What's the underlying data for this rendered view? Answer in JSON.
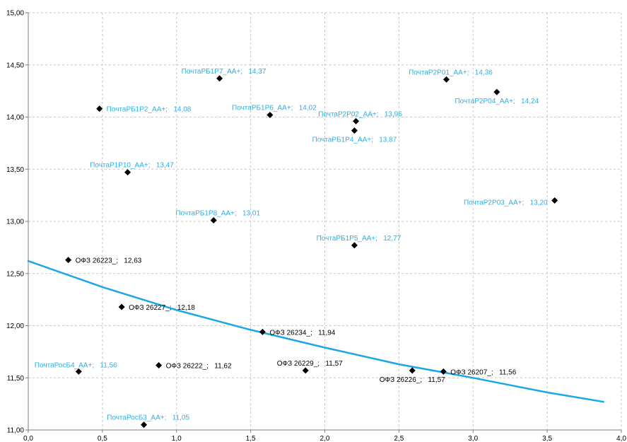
{
  "chart_data": {
    "type": "scatter",
    "xlim": [
      0,
      4
    ],
    "ylim": [
      11,
      15
    ],
    "xticks": [
      "0,0",
      "0,5",
      "1,0",
      "1,5",
      "2,0",
      "2,5",
      "3,0",
      "3,5",
      "4,0"
    ],
    "yticks": [
      "11,00",
      "11,50",
      "12,00",
      "12,50",
      "13,00",
      "13,50",
      "14,00",
      "14,50",
      "15,00"
    ],
    "grid": true,
    "colors": {
      "marker": "#000000",
      "trend": "#1aa7e6",
      "label_cyan": "#2bb0e3",
      "label_black": "#000000"
    },
    "points": [
      {
        "x": 0.48,
        "y": 14.08,
        "label": "ПочтаРБ1Р2_АА+;   14,08",
        "color": "cyan",
        "anchor": "right"
      },
      {
        "x": 1.29,
        "y": 14.37,
        "label": "ПочтаРБ1Р7_АА+;   14,37",
        "color": "cyan",
        "anchor": "above"
      },
      {
        "x": 1.63,
        "y": 14.02,
        "label": "ПочтаРБ1Р6_АА+;   14,02",
        "color": "cyan",
        "anchor": "above"
      },
      {
        "x": 2.21,
        "y": 13.96,
        "label": "ПочтаР2Р02_АА+;   13,96",
        "color": "cyan",
        "anchor": "above"
      },
      {
        "x": 2.2,
        "y": 13.87,
        "label": "ПочтаРБ1Р4_АА+;   13,87",
        "color": "cyan",
        "anchor": "below"
      },
      {
        "x": 2.82,
        "y": 14.36,
        "label": "ПочтаР2Р01_АА+;   14,36",
        "color": "cyan",
        "anchor": "above"
      },
      {
        "x": 3.16,
        "y": 14.24,
        "label": "ПочтаР2Р04_АА+;   14,24",
        "color": "cyan",
        "anchor": "below"
      },
      {
        "x": 0.67,
        "y": 13.47,
        "label": "ПочтаР1Р10_АА+;   13,47",
        "color": "cyan",
        "anchor": "above"
      },
      {
        "x": 3.55,
        "y": 13.2,
        "label": "ПочтаР2Р03_АА+;   13,20",
        "color": "cyan",
        "anchor": "left"
      },
      {
        "x": 1.25,
        "y": 13.01,
        "label": "ПочтаРБ1Р8_АА+;   13,01",
        "color": "cyan",
        "anchor": "above"
      },
      {
        "x": 2.2,
        "y": 12.77,
        "label": "ПочтаРБ1Р5_АА+;   12,77",
        "color": "cyan",
        "anchor": "above"
      },
      {
        "x": 0.27,
        "y": 12.63,
        "label": "ОФЗ 26223_;   12,63",
        "color": "black",
        "anchor": "right"
      },
      {
        "x": 0.63,
        "y": 12.18,
        "label": "ОФЗ 26227_;   12,18",
        "color": "black",
        "anchor": "right"
      },
      {
        "x": 1.58,
        "y": 11.94,
        "label": "ОФЗ 26234_;   11,94",
        "color": "black",
        "anchor": "right"
      },
      {
        "x": 0.34,
        "y": 11.56,
        "label": "ПочтаРосБ4_АА+;   11,56",
        "color": "cyan",
        "anchor": "aboveleft"
      },
      {
        "x": 0.88,
        "y": 11.62,
        "label": "ОФЗ 26222_;   11,62",
        "color": "black",
        "anchor": "right"
      },
      {
        "x": 1.87,
        "y": 11.57,
        "label": "ОФЗ 26229_;   11,57",
        "color": "black",
        "anchor": "above"
      },
      {
        "x": 2.59,
        "y": 11.57,
        "label": "ОФЗ 26226_;   11,57",
        "color": "black",
        "anchor": "below"
      },
      {
        "x": 2.8,
        "y": 11.56,
        "label": "ОФЗ 26207_;   11,56",
        "color": "black",
        "anchor": "right"
      },
      {
        "x": 0.78,
        "y": 11.05,
        "label": "ПочтаРосБ3_АА+;   11,05",
        "color": "cyan",
        "anchor": "above"
      }
    ],
    "trendline": [
      {
        "x": 0.0,
        "y": 12.62
      },
      {
        "x": 0.5,
        "y": 12.37
      },
      {
        "x": 1.0,
        "y": 12.15
      },
      {
        "x": 1.5,
        "y": 11.96
      },
      {
        "x": 2.0,
        "y": 11.79
      },
      {
        "x": 2.5,
        "y": 11.63
      },
      {
        "x": 3.0,
        "y": 11.5
      },
      {
        "x": 3.5,
        "y": 11.36
      },
      {
        "x": 3.88,
        "y": 11.27
      }
    ]
  }
}
